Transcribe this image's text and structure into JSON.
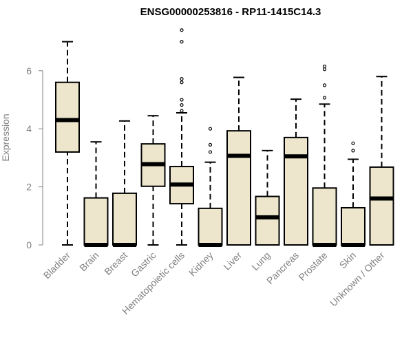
{
  "chart_data": {
    "type": "boxplot",
    "title": "ENSG00000253816 - RP11-1415C14.3",
    "ylabel": "Expression",
    "xlabel": "",
    "ylim": [
      0,
      7.6
    ],
    "yticks": [
      0,
      2,
      4,
      6
    ],
    "box_fill": "#ede6cc",
    "categories": [
      "Bladder",
      "Brain",
      "Breast",
      "Gastric",
      "Hematopoietic cells",
      "Kidney",
      "Liver",
      "Lung",
      "Pancreas",
      "Prostate",
      "Skin",
      "Unknown / Other"
    ],
    "boxes": [
      {
        "whisker_low": 0,
        "q1": 3.2,
        "median": 4.3,
        "q3": 5.6,
        "whisker_high": 7.0,
        "outliers": []
      },
      {
        "whisker_low": 0,
        "q1": 0,
        "median": 0,
        "q3": 1.62,
        "whisker_high": 3.55,
        "outliers": []
      },
      {
        "whisker_low": 0,
        "q1": 0,
        "median": 0,
        "q3": 1.78,
        "whisker_high": 4.27,
        "outliers": []
      },
      {
        "whisker_low": 0,
        "q1": 2.02,
        "median": 2.78,
        "q3": 3.48,
        "whisker_high": 4.45,
        "outliers": []
      },
      {
        "whisker_low": 0,
        "q1": 1.42,
        "median": 2.08,
        "q3": 2.7,
        "whisker_high": 4.55,
        "outliers": [
          4.62,
          4.82,
          5.0,
          5.6,
          5.72,
          7.0,
          7.4
        ]
      },
      {
        "whisker_low": 0,
        "q1": 0,
        "median": 0,
        "q3": 1.26,
        "whisker_high": 2.85,
        "outliers": [
          3.2,
          3.45,
          4.0
        ]
      },
      {
        "whisker_low": 0,
        "q1": 0,
        "median": 3.07,
        "q3": 3.93,
        "whisker_high": 5.77,
        "outliers": []
      },
      {
        "whisker_low": 0,
        "q1": 0,
        "median": 0.95,
        "q3": 1.67,
        "whisker_high": 3.25,
        "outliers": []
      },
      {
        "whisker_low": 0,
        "q1": 0,
        "median": 3.05,
        "q3": 3.7,
        "whisker_high": 5.02,
        "outliers": []
      },
      {
        "whisker_low": 0,
        "q1": 0,
        "median": 0,
        "q3": 1.96,
        "whisker_high": 4.85,
        "outliers": [
          5.07,
          5.5,
          6.05,
          6.15
        ]
      },
      {
        "whisker_low": 0,
        "q1": 0,
        "median": 0,
        "q3": 1.28,
        "whisker_high": 2.95,
        "outliers": [
          3.25,
          3.5
        ]
      },
      {
        "whisker_low": 0,
        "q1": 0,
        "median": 1.6,
        "q3": 2.68,
        "whisker_high": 5.8,
        "outliers": []
      }
    ],
    "grid": false,
    "legend": "none"
  }
}
